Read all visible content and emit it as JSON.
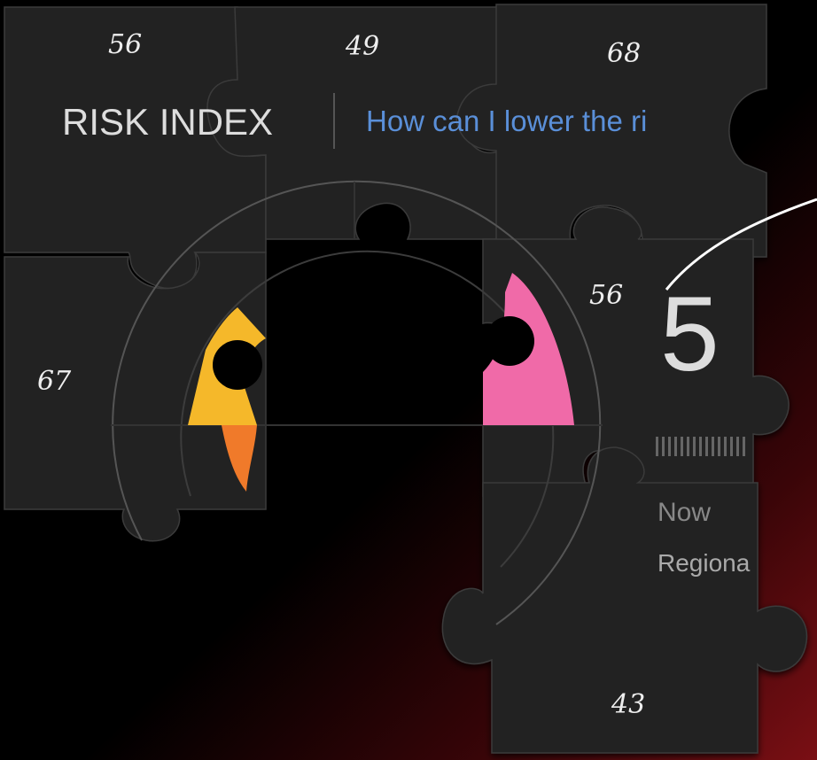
{
  "pieces": [
    {
      "label": 56
    },
    {
      "label": 49
    },
    {
      "label": 68
    },
    {
      "label": 67
    },
    {
      "label": 56
    },
    {
      "label": 43
    }
  ],
  "app": {
    "title": "RISK INDEX",
    "question": "How can I lower the ri",
    "score": "5",
    "now": "Now",
    "regional": "Regiona"
  }
}
